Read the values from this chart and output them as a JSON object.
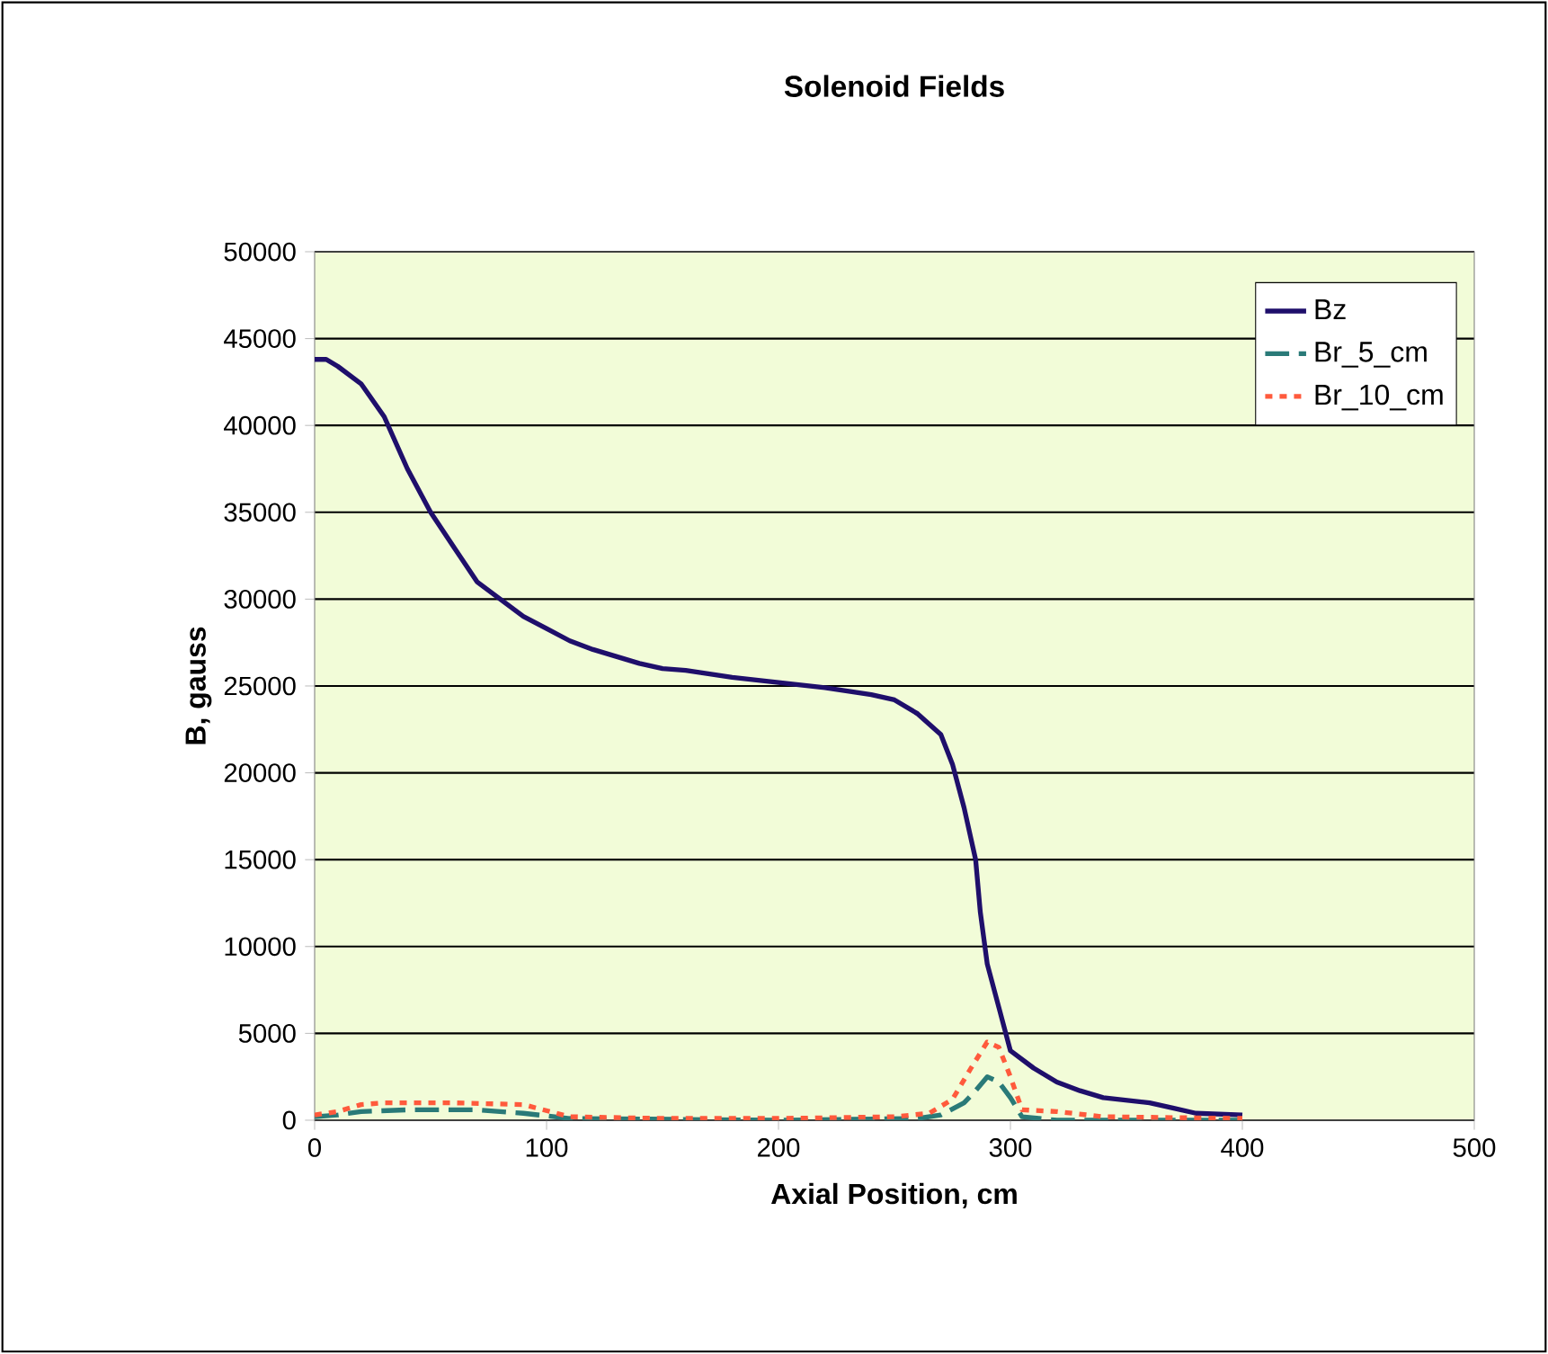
{
  "chart_data": {
    "type": "line",
    "title": "Solenoid Fields",
    "xlabel": "Axial Position, cm",
    "ylabel": "B, gauss",
    "xlim": [
      0,
      500
    ],
    "xticks": [
      0,
      100,
      200,
      300,
      400,
      500
    ],
    "ylim": [
      0,
      50000
    ],
    "yticks": [
      0,
      5000,
      10000,
      15000,
      20000,
      25000,
      30000,
      35000,
      40000,
      45000,
      50000
    ],
    "grid": "y",
    "legend": "top right",
    "marker": "none",
    "series": [
      {
        "name": "Bz",
        "color": "#1f0f6b",
        "line_style": "solid",
        "x": [
          0,
          5,
          10,
          20,
          30,
          40,
          50,
          60,
          70,
          80,
          90,
          100,
          110,
          120,
          130,
          140,
          150,
          160,
          180,
          200,
          220,
          240,
          250,
          260,
          270,
          275,
          280,
          285,
          287,
          290,
          295,
          300,
          310,
          320,
          330,
          340,
          360,
          370,
          380,
          400
        ],
        "values": [
          43800,
          43800,
          43400,
          42400,
          40500,
          37500,
          35000,
          33000,
          31000,
          30000,
          29000,
          28300,
          27600,
          27100,
          26700,
          26300,
          26000,
          25900,
          25500,
          25200,
          24900,
          24500,
          24200,
          23400,
          22200,
          20500,
          18000,
          15000,
          12000,
          9000,
          6500,
          4000,
          3000,
          2200,
          1700,
          1300,
          1000,
          700,
          400,
          300
        ]
      },
      {
        "name": "Br_5_cm",
        "color": "#2a7a78",
        "line_style": "dashed",
        "x": [
          0,
          10,
          20,
          40,
          70,
          90,
          110,
          200,
          260,
          270,
          280,
          285,
          290,
          295,
          300,
          305,
          320,
          400
        ],
        "values": [
          200,
          300,
          500,
          600,
          600,
          400,
          100,
          0,
          100,
          300,
          1000,
          1700,
          2500,
          2200,
          1300,
          200,
          0,
          0
        ]
      },
      {
        "name": "Br_10_cm",
        "color": "#ff5a3c",
        "line_style": "dotted",
        "x": [
          0,
          10,
          20,
          30,
          60,
          90,
          110,
          150,
          200,
          250,
          265,
          275,
          283,
          290,
          295,
          300,
          305,
          320,
          340,
          400
        ],
        "values": [
          300,
          500,
          900,
          1000,
          1000,
          900,
          200,
          100,
          100,
          200,
          400,
          1200,
          3000,
          4500,
          4200,
          2500,
          600,
          500,
          200,
          100
        ]
      }
    ]
  }
}
